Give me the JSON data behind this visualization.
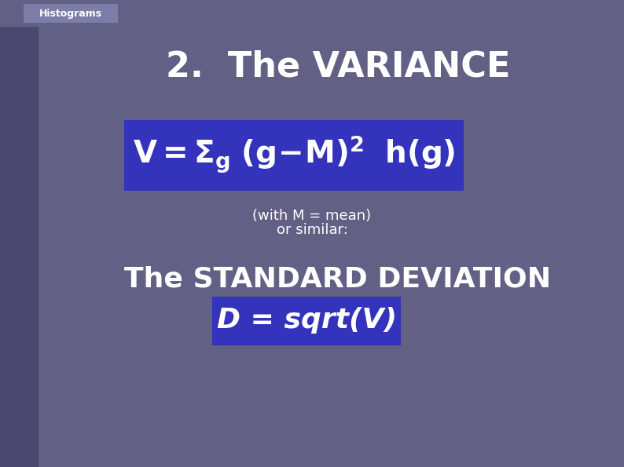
{
  "bg_color": "#626085",
  "sidebar_color": "#4a4870",
  "tab_bg_color": "#7c7ea8",
  "tab_text": "Histograms",
  "tab_text_color": "#ffffff",
  "title": "2.  The VARIANCE",
  "title_color": "#ffffff",
  "title_fontsize": 32,
  "title_weight": "bold",
  "formula_box_color": "#3333bb",
  "formula_color": "#ffffff",
  "formula_fontsize": 28,
  "note_line1": "(with M = mean)",
  "note_line2": "or similar:",
  "note_color": "#ffffff",
  "note_fontsize": 13,
  "std_dev_title": "The STANDARD DEVIATION",
  "std_dev_color": "#ffffff",
  "std_dev_fontsize": 26,
  "std_dev_weight": "bold",
  "std_dev_box_color": "#3333bb",
  "std_dev_formula": "D = sqrt(V)",
  "std_dev_formula_color": "#ffffff",
  "std_dev_formula_fontsize": 26,
  "std_dev_formula_weight": "bold"
}
